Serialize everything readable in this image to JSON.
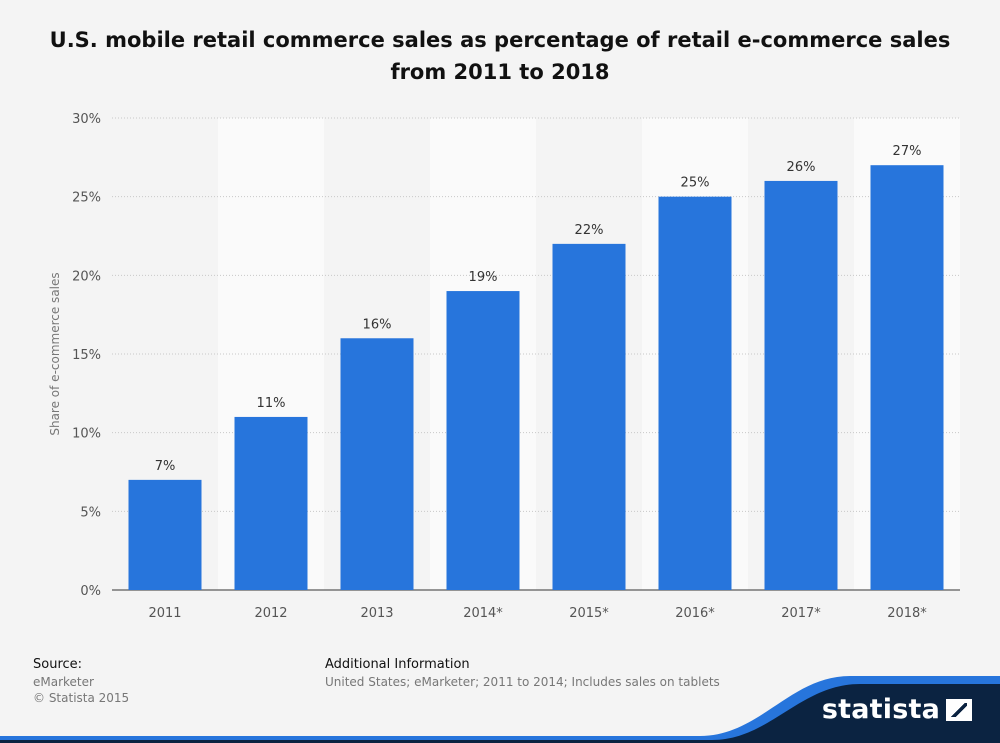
{
  "chart_data": {
    "type": "bar",
    "title_lines": [
      "U.S. mobile retail commerce sales as percentage of retail e-commerce sales",
      "from 2011 to 2018"
    ],
    "ylabel": "Share of e-commerce sales",
    "xlabel": "",
    "categories": [
      "2011",
      "2012",
      "2013",
      "2014*",
      "2015*",
      "2016*",
      "2017*",
      "2018*"
    ],
    "values": [
      7,
      11,
      16,
      19,
      22,
      25,
      26,
      27
    ],
    "data_labels": [
      "7%",
      "11%",
      "16%",
      "19%",
      "22%",
      "25%",
      "26%",
      "27%"
    ],
    "ylim": [
      0,
      30
    ],
    "yticks": [
      0,
      5,
      10,
      15,
      20,
      25,
      30
    ],
    "ytick_labels": [
      "0%",
      "5%",
      "10%",
      "15%",
      "20%",
      "25%",
      "30%"
    ],
    "grid": true,
    "bar_color": "#2775dc"
  },
  "footer": {
    "source_heading": "Source:",
    "source_lines": [
      "eMarketer",
      "© Statista 2015"
    ],
    "info_heading": "Additional Information",
    "info_line": "United States; eMarketer; 2011 to 2014; Includes sales on tablets",
    "logo_text": "statista"
  },
  "colors": {
    "background": "#f4f4f4",
    "band_light": "#fafafa",
    "footer_dark": "#0b2341",
    "footer_accent": "#2775dc"
  }
}
